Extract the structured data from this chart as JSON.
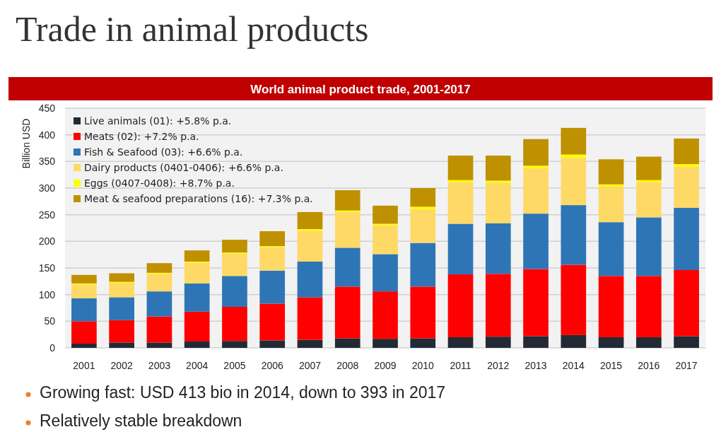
{
  "chart_data": {
    "type": "bar",
    "title": "Trade in animal products",
    "subtitle": "World animal product trade, 2001-2017",
    "ylabel": "Billion USD",
    "stacked": true,
    "categories": [
      "2001",
      "2002",
      "2003",
      "2004",
      "2005",
      "2006",
      "2007",
      "2008",
      "2009",
      "2010",
      "2011",
      "2012",
      "2013",
      "2014",
      "2015",
      "2016",
      "2017"
    ],
    "series": [
      {
        "name": "Live animals (01): +5.8% p.a.",
        "color": "#222a35",
        "values": [
          8,
          10,
          10,
          12,
          13,
          14,
          15,
          18,
          17,
          18,
          20,
          21,
          22,
          24,
          20,
          20,
          22
        ]
      },
      {
        "name": "Meats (02): +7.2% p.a.",
        "color": "#ff0000",
        "values": [
          42,
          42,
          49,
          56,
          64,
          69,
          80,
          97,
          89,
          97,
          118,
          118,
          126,
          132,
          115,
          115,
          124
        ]
      },
      {
        "name": "Fish & Seafood (03): +6.6% p.a.",
        "color": "#2e75b6",
        "values": [
          43,
          43,
          47,
          53,
          58,
          62,
          67,
          73,
          70,
          82,
          95,
          95,
          104,
          112,
          101,
          110,
          117
        ]
      },
      {
        "name": "Dairy products (0401-0406): +6.6% p.a.",
        "color": "#ffd966",
        "values": [
          26,
          27,
          33,
          39,
          42,
          44,
          58,
          67,
          54,
          63,
          78,
          76,
          85,
          89,
          67,
          66,
          77
        ]
      },
      {
        "name": "Eggs (0407-0408): +8.7% p.a.",
        "color": "#ffff00",
        "values": [
          2,
          2,
          2,
          2,
          2,
          2,
          3,
          3,
          3,
          5,
          4,
          4,
          5,
          6,
          4,
          4,
          5
        ]
      },
      {
        "name": "Meat & seafood preparations (16): +7.3% p.a.",
        "color": "#bf9000",
        "values": [
          16,
          16,
          18,
          21,
          24,
          28,
          32,
          38,
          34,
          35,
          46,
          47,
          50,
          50,
          47,
          44,
          48
        ]
      }
    ],
    "ylim": [
      0,
      450
    ],
    "yticks": [
      0,
      50,
      100,
      150,
      200,
      250,
      300,
      350,
      400,
      450
    ],
    "grid": "y",
    "legend": "top left",
    "annotations": [
      "Growing fast: USD 413 bio in 2014, down to 393 in 2017",
      "Relatively stable breakdown"
    ]
  }
}
